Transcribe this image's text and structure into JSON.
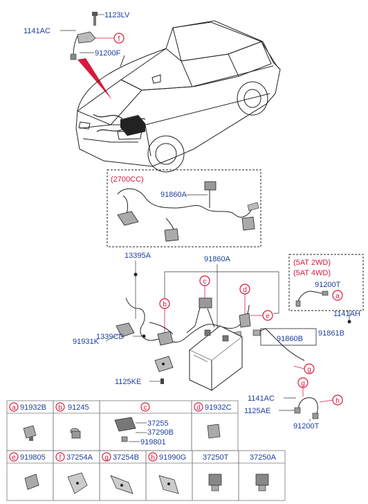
{
  "top": {
    "labels": [
      "1123LV",
      "1141AC",
      "91200F"
    ],
    "callout": "f"
  },
  "engine_box": {
    "title": "(2700CC)",
    "part": "91860A"
  },
  "main": {
    "labels": {
      "l13395a": "13395A",
      "l91860a": "91860A",
      "l91931k": "91931K",
      "l1339cd": "1339CD",
      "l1125ke": "1125KE",
      "l91860b": "91860B",
      "l91861b": "91861B",
      "l1141ac": "1141AC",
      "l1125ae": "1125AE",
      "l91200t_bottom": "91200T"
    },
    "callouts": [
      "c",
      "d",
      "b",
      "e",
      "g",
      "g",
      "h"
    ]
  },
  "at_box": {
    "line1": "(5AT 2WD)",
    "line2": "(5AT 4WD)",
    "part": "91200T",
    "callout": "a",
    "outside": "1141AH"
  },
  "table": {
    "row1": [
      {
        "code": "a",
        "part": "91932B"
      },
      {
        "code": "b",
        "part": "91245"
      },
      {
        "code": "c",
        "parts": [
          "37255",
          "37290B",
          "919801"
        ]
      },
      {
        "code": "d",
        "part": "91932C"
      }
    ],
    "row2": [
      {
        "code": "e",
        "part": "919805"
      },
      {
        "code": "f",
        "part": "37254A"
      },
      {
        "code": "g",
        "part": "37254B"
      },
      {
        "code": "h",
        "part": "91990G"
      },
      {
        "code": "",
        "part": "37250T"
      },
      {
        "code": "",
        "part": "37250A"
      }
    ]
  },
  "colors": {
    "label_blue": "#1f3f9a",
    "callout_red": "#d8193c"
  }
}
